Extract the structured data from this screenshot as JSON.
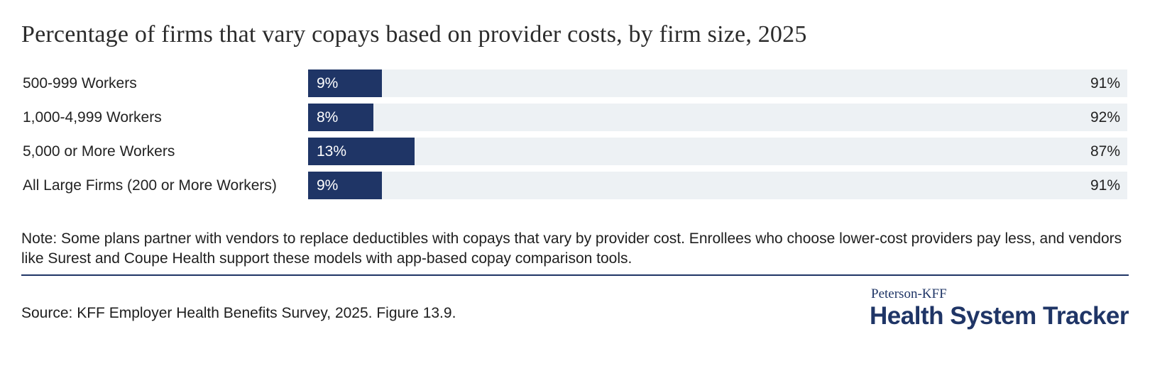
{
  "chart_data": {
    "type": "bar",
    "orientation": "horizontal",
    "stacked": true,
    "title": "Percentage of firms that vary copays based on provider costs, by firm size, 2025",
    "categories": [
      "500-999 Workers",
      "1,000-4,999 Workers",
      "5,000 or More Workers",
      "All Large Firms (200 or More Workers)"
    ],
    "series": [
      {
        "values": [
          9,
          8,
          13,
          9
        ],
        "labels": [
          "9%",
          "8%",
          "13%",
          "9%"
        ],
        "color": "#1f3566"
      },
      {
        "values": [
          91,
          92,
          87,
          91
        ],
        "labels": [
          "91%",
          "92%",
          "87%",
          "91%"
        ],
        "color": "#edf1f4"
      }
    ],
    "xlim": [
      0,
      100
    ],
    "grid": false,
    "legend": "none"
  },
  "note": "Note: Some plans partner with vendors to replace deductibles with copays that vary by provider cost. Enrollees who choose lower-cost providers pay less, and vendors like Surest and Coupe Health support these models with app-based copay comparison tools.",
  "source": "Source: KFF Employer Health Benefits Survey, 2025. Figure 13.9.",
  "brand": {
    "top": "Peterson-KFF",
    "main": "Health System Tracker"
  },
  "colors": {
    "accent": "#1f3566",
    "track": "#edf1f4"
  }
}
